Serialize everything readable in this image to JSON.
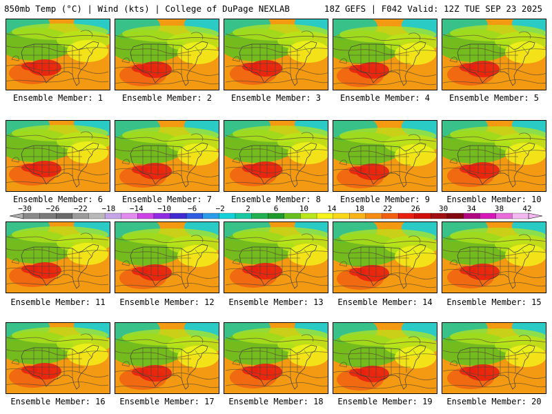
{
  "header": {
    "title_left": "850mb Temp (°C) | Wind (kts) | College of DuPage NEXLAB",
    "title_right": "18Z GEFS | F042 Valid: 12Z TUE SEP 23 2025"
  },
  "members": [
    {
      "caption": "Ensemble Member: 1"
    },
    {
      "caption": "Ensemble Member: 2"
    },
    {
      "caption": "Ensemble Member: 3"
    },
    {
      "caption": "Ensemble Member: 4"
    },
    {
      "caption": "Ensemble Member: 5"
    },
    {
      "caption": "Ensemble Member: 6"
    },
    {
      "caption": "Ensemble Member: 7"
    },
    {
      "caption": "Ensemble Member: 8"
    },
    {
      "caption": "Ensemble Member: 9"
    },
    {
      "caption": "Ensemble Member: 10"
    },
    {
      "caption": "Ensemble Member: 11"
    },
    {
      "caption": "Ensemble Member: 12"
    },
    {
      "caption": "Ensemble Member: 13"
    },
    {
      "caption": "Ensemble Member: 14"
    },
    {
      "caption": "Ensemble Member: 15"
    },
    {
      "caption": "Ensemble Member: 16"
    },
    {
      "caption": "Ensemble Member: 17"
    },
    {
      "caption": "Ensemble Member: 18"
    },
    {
      "caption": "Ensemble Member: 19"
    },
    {
      "caption": "Ensemble Member: 20"
    }
  ],
  "colorbar": {
    "labels": [
      "−30",
      "−26",
      "−22",
      "−18",
      "−14",
      "−10",
      "−6",
      "−2",
      "2",
      "6",
      "10",
      "14",
      "18",
      "22",
      "26",
      "30",
      "34",
      "38",
      "42"
    ],
    "colors": [
      "#8a8a8a",
      "#7a7a7a",
      "#6a6a6a",
      "#9a9a9a",
      "#b9b9b9",
      "#c6a4e8",
      "#e38af0",
      "#cc44e6",
      "#8f2be0",
      "#3f2bd0",
      "#2f5ce0",
      "#2a9ce8",
      "#14d0d8",
      "#18c8a0",
      "#22b050",
      "#1e9a2a",
      "#66c020",
      "#b8e61a",
      "#f4f41a",
      "#f8d818",
      "#f8b418",
      "#f48c14",
      "#f06010",
      "#e82010",
      "#d01008",
      "#a01010",
      "#800810",
      "#b00880",
      "#d418b8",
      "#e86cd8",
      "#f4b8f0"
    ]
  }
}
